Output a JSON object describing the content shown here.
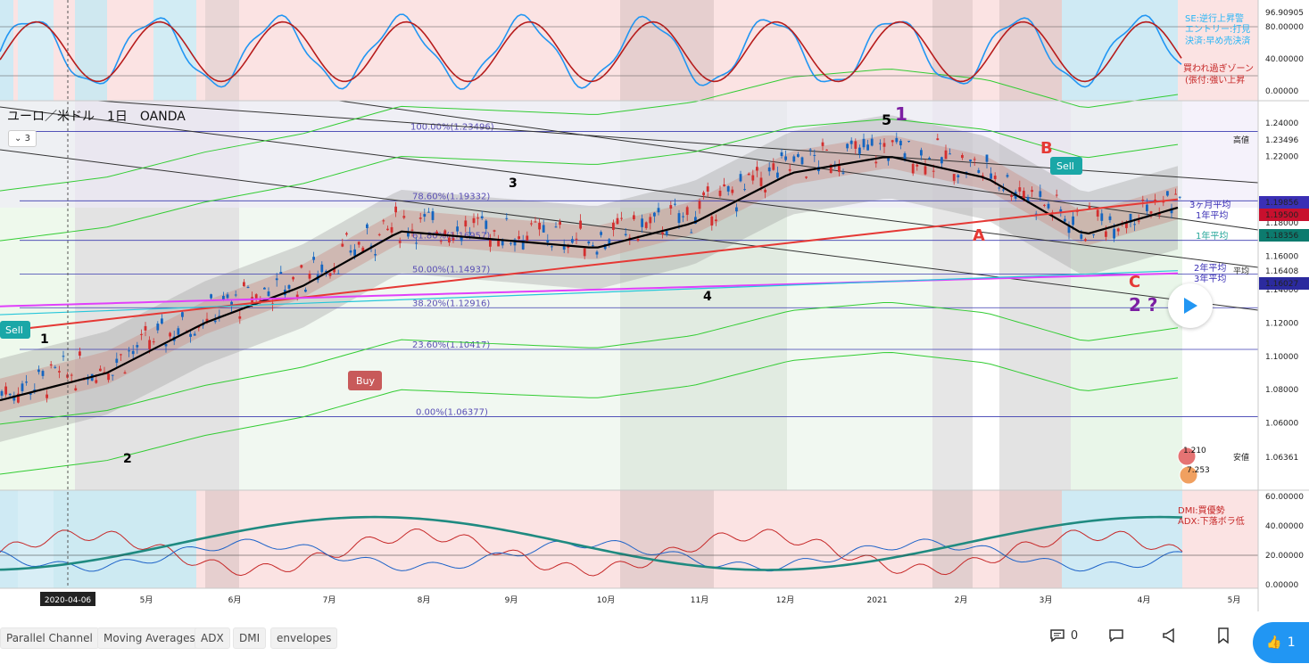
{
  "header": {
    "title": "ユーロ／米ドル　1日　OANDA",
    "interval_button": "3"
  },
  "stoch": {
    "axis": [
      "96.90905",
      "80.00000",
      "40.00000",
      "0.00000"
    ],
    "legend": [
      "SE:逆行上昇警",
      "エントリー:打見",
      "決済:早め売決済",
      "買われ過ぎゾーン",
      "(張付:強い上昇"
    ]
  },
  "main": {
    "axis": [
      "1.24000",
      "1.22000",
      "1.18000",
      "1.16000",
      "1.14000",
      "1.12000",
      "1.10000",
      "1.08000",
      "1.06000"
    ],
    "price_tags": [
      {
        "label": "高値",
        "value": "1.23496",
        "bg": "#ffffff",
        "fg": "#222222"
      },
      {
        "label": "",
        "value": "1.19856",
        "bg": "#3a2fb5",
        "fg": "#ffffff"
      },
      {
        "label": "",
        "value": "1.19500",
        "bg": "#c8102e",
        "fg": "#ffffff"
      },
      {
        "label": "",
        "value": "1.18356",
        "bg": "#0c7b6e",
        "fg": "#ffffff"
      },
      {
        "label": "平均",
        "value": "1.16408",
        "bg": "#ffffff",
        "fg": "#222222"
      },
      {
        "label": "",
        "value": "1.16027",
        "bg": "#2b2a9e",
        "fg": "#ffffff"
      },
      {
        "label": "安値",
        "value": "1.06361",
        "bg": "#ffffff",
        "fg": "#222222"
      }
    ],
    "fib": [
      {
        "label": "100.00%(1.23496)"
      },
      {
        "label": "78.60%(1.19332)"
      },
      {
        "label": "61.80%(1.16957)"
      },
      {
        "label": "50.00%(1.14937)"
      },
      {
        "label": "38.20%(1.12916)"
      },
      {
        "label": "23.60%(1.10417)"
      },
      {
        "label": "0.00%(1.06377)"
      }
    ],
    "ma_labels": [
      "3ヶ月平均",
      "1年平均",
      "1年平均",
      "2年平均",
      "3年平均"
    ],
    "waves": [
      "1",
      "2",
      "3",
      "4",
      "5",
      "A",
      "B",
      "C",
      "2 ?"
    ],
    "signals": {
      "sell": "Sell",
      "buy": "Buy"
    },
    "badges": [
      "1.210",
      "7.253"
    ]
  },
  "dmi": {
    "axis": [
      "60.00000",
      "40.00000",
      "20.00000",
      "0.00000"
    ],
    "legend": [
      "DMI:買優勢",
      "ADX:下落ボラ低"
    ]
  },
  "time_axis": {
    "labels": [
      "5月",
      "6月",
      "7月",
      "8月",
      "9月",
      "10月",
      "11月",
      "12月",
      "2021",
      "2月",
      "3月",
      "4月",
      "5月"
    ],
    "cursor_date": "2020-04-06"
  },
  "chart_data": {
    "type": "line",
    "title": "ユーロ／米ドル　1日　OANDA",
    "xlabel": "",
    "ylabel": "",
    "x": [
      "2020-04",
      "2020-05",
      "2020-06",
      "2020-07",
      "2020-08",
      "2020-09",
      "2020-10",
      "2020-11",
      "2020-12",
      "2021-01",
      "2021-02",
      "2021-03",
      "2021-04"
    ],
    "ylim": [
      1.05,
      1.25
    ],
    "series": [
      {
        "values": [
          1.08,
          1.095,
          1.125,
          1.147,
          1.18,
          1.175,
          1.17,
          1.185,
          1.215,
          1.225,
          1.212,
          1.178,
          1.195
        ]
      }
    ],
    "high": 1.23496,
    "low": 1.06361
  },
  "toolbar": {
    "tags": [
      "Parallel Channel",
      "Moving Averages",
      "ADX",
      "DMI",
      "envelopes"
    ],
    "comments": "0",
    "likes": "1"
  }
}
